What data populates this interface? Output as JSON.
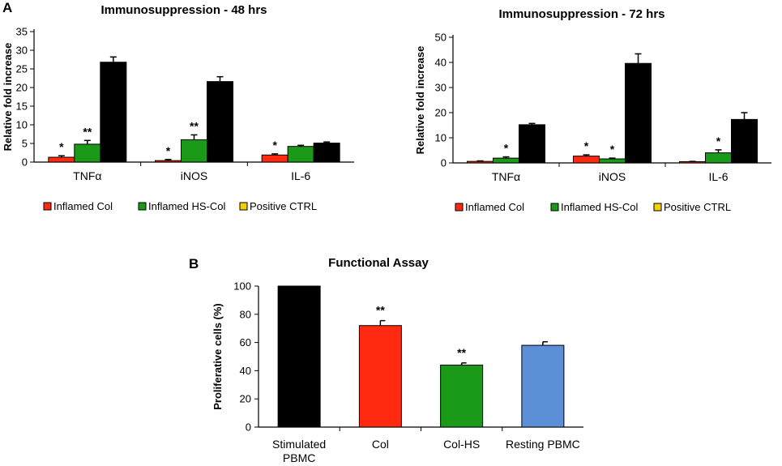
{
  "panel_labels": {
    "a": "A",
    "b": "B"
  },
  "colors": {
    "inflamed_col": "#ff2a10",
    "inflamed_hscol": "#1a9a18",
    "positive_ctrl": "#000000",
    "legend_positive": "#f5d000",
    "stimulated": "#000000",
    "col": "#ff2a10",
    "colhs": "#1a9a18",
    "resting": "#5b8fd6"
  },
  "chart_data": [
    {
      "id": "a48",
      "type": "bar",
      "title": "Immunosuppression - 48 hrs",
      "ylabel": "Relative fold increase",
      "xlabel": "",
      "ylim": [
        0,
        35
      ],
      "yticks": [
        0,
        5,
        10,
        15,
        20,
        25,
        30,
        35
      ],
      "categories": [
        "TNFα",
        "iNOS",
        "IL-6"
      ],
      "series": [
        {
          "name": "Inflamed Col",
          "values": [
            1.3,
            0.4,
            1.9
          ],
          "errors": [
            0.4,
            0.3,
            0.3
          ],
          "sig": [
            "*",
            "*",
            "*"
          ]
        },
        {
          "name": "Inflamed HS-Col",
          "values": [
            4.8,
            6.0,
            4.2
          ],
          "errors": [
            1.0,
            1.3,
            0.3
          ],
          "sig": [
            "**",
            "**",
            ""
          ]
        },
        {
          "name": "Positive CTRL",
          "values": [
            26.8,
            21.6,
            5.1
          ],
          "errors": [
            1.4,
            1.3,
            0.3
          ],
          "sig": [
            "",
            "",
            ""
          ]
        }
      ],
      "legend": [
        "Inflamed Col",
        "Inflamed HS-Col",
        "Positive CTRL"
      ]
    },
    {
      "id": "a72",
      "type": "bar",
      "title": "Immunosuppression - 72 hrs",
      "ylabel": "Relative fold increase",
      "xlabel": "",
      "ylim": [
        0,
        50
      ],
      "yticks": [
        0,
        10,
        20,
        30,
        40,
        50
      ],
      "categories": [
        "TNFα",
        "iNOS",
        "IL-6"
      ],
      "series": [
        {
          "name": "Inflamed Col",
          "values": [
            0.6,
            2.7,
            0.5
          ],
          "errors": [
            0.2,
            0.5,
            0.1
          ],
          "sig": [
            "",
            "*",
            ""
          ]
        },
        {
          "name": "Inflamed HS-Col",
          "values": [
            1.9,
            1.6,
            4.0
          ],
          "errors": [
            0.5,
            0.3,
            1.2
          ],
          "sig": [
            "*",
            "*",
            "*"
          ]
        },
        {
          "name": "Positive CTRL",
          "values": [
            15.2,
            39.6,
            17.3
          ],
          "errors": [
            0.5,
            3.8,
            2.7
          ],
          "sig": [
            "",
            "",
            ""
          ]
        }
      ],
      "legend": [
        "Inflamed Col",
        "Inflamed HS-Col",
        "Positive CTRL"
      ]
    },
    {
      "id": "b",
      "type": "bar",
      "title": "Functional Assay",
      "ylabel": "Proliferative cells (%)",
      "xlabel": "",
      "ylim": [
        0,
        100
      ],
      "yticks": [
        0,
        20,
        40,
        60,
        80,
        100
      ],
      "categories": [
        [
          "Stimulated",
          "PBMC"
        ],
        [
          "Col"
        ],
        [
          "Col-HS"
        ],
        [
          "Resting PBMC"
        ]
      ],
      "values": [
        100,
        72,
        44,
        58
      ],
      "errors": [
        0,
        3.5,
        1.5,
        2.5
      ],
      "sig": [
        "",
        "**",
        "**",
        ""
      ]
    }
  ]
}
